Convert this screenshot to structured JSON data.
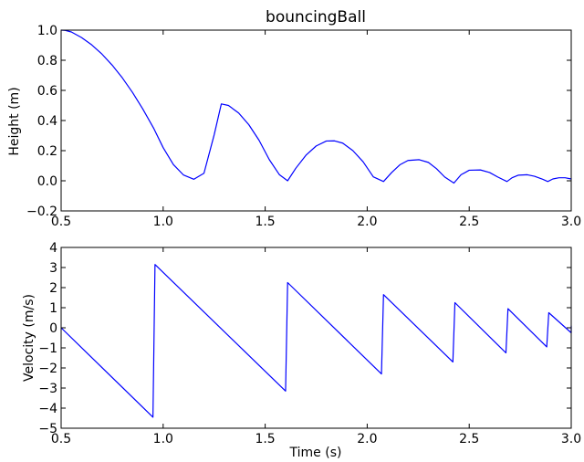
{
  "chart_data": [
    {
      "type": "line",
      "title": "bouncingBall",
      "xlabel": "",
      "ylabel": "Height (m)",
      "xlim": [
        0.5,
        3.0
      ],
      "ylim": [
        -0.2,
        1.0
      ],
      "xticks": [
        "0.5",
        "1.0",
        "1.5",
        "2.0",
        "2.5",
        "3.0"
      ],
      "yticks": [
        "1.0",
        "0.8",
        "0.6",
        "0.4",
        "0.2",
        "0.0",
        "−0.2"
      ],
      "grid": false,
      "color": "#0000ff",
      "series": [
        {
          "x": [
            0.5,
            0.52,
            0.55,
            0.6,
            0.65,
            0.7,
            0.75,
            0.8,
            0.85,
            0.9,
            0.955,
            1.0,
            1.05,
            1.1,
            1.15,
            1.2,
            1.25,
            1.285,
            1.32,
            1.37,
            1.42,
            1.47,
            1.52,
            1.57,
            1.61,
            1.65,
            1.7,
            1.75,
            1.8,
            1.84,
            1.88,
            1.93,
            1.98,
            2.03,
            2.08,
            2.12,
            2.16,
            2.2,
            2.255,
            2.3,
            2.34,
            2.38,
            2.425,
            2.46,
            2.5,
            2.555,
            2.6,
            2.64,
            2.685,
            2.71,
            2.74,
            2.785,
            2.82,
            2.86,
            2.885,
            2.91,
            2.94,
            2.97,
            3.0
          ],
          "y": [
            1.0,
            0.998,
            0.988,
            0.951,
            0.902,
            0.841,
            0.768,
            0.683,
            0.586,
            0.477,
            0.345,
            0.22,
            0.108,
            0.038,
            0.01,
            0.05,
            0.305,
            0.51,
            0.5,
            0.45,
            0.372,
            0.269,
            0.141,
            0.04,
            0.0,
            0.083,
            0.17,
            0.231,
            0.264,
            0.265,
            0.25,
            0.2,
            0.126,
            0.026,
            -0.005,
            0.055,
            0.106,
            0.135,
            0.14,
            0.122,
            0.08,
            0.025,
            -0.015,
            0.04,
            0.07,
            0.072,
            0.055,
            0.025,
            -0.005,
            0.02,
            0.037,
            0.04,
            0.03,
            0.01,
            -0.005,
            0.012,
            0.02,
            0.02,
            0.012
          ]
        }
      ]
    },
    {
      "type": "line",
      "title": "",
      "xlabel": "Time (s)",
      "ylabel": "Velocity (m/s)",
      "xlim": [
        0.5,
        3.0
      ],
      "ylim": [
        -5,
        4
      ],
      "xticks": [
        "0.5",
        "1.0",
        "1.5",
        "2.0",
        "2.5",
        "3.0"
      ],
      "yticks": [
        "4",
        "3",
        "2",
        "1",
        "0",
        "−1",
        "−2",
        "−3",
        "−4",
        "−5"
      ],
      "grid": false,
      "color": "#0000ff",
      "series": [
        {
          "x": [
            0.5,
            0.95,
            0.96,
            1.6,
            1.61,
            2.07,
            2.08,
            2.42,
            2.43,
            2.68,
            2.69,
            2.88,
            2.89,
            3.0,
            3.0
          ],
          "y": [
            0.0,
            -4.45,
            3.15,
            -3.15,
            2.25,
            -2.3,
            1.65,
            -1.7,
            1.25,
            -1.25,
            0.95,
            -0.95,
            0.75,
            -0.25,
            0.1
          ]
        }
      ]
    }
  ]
}
